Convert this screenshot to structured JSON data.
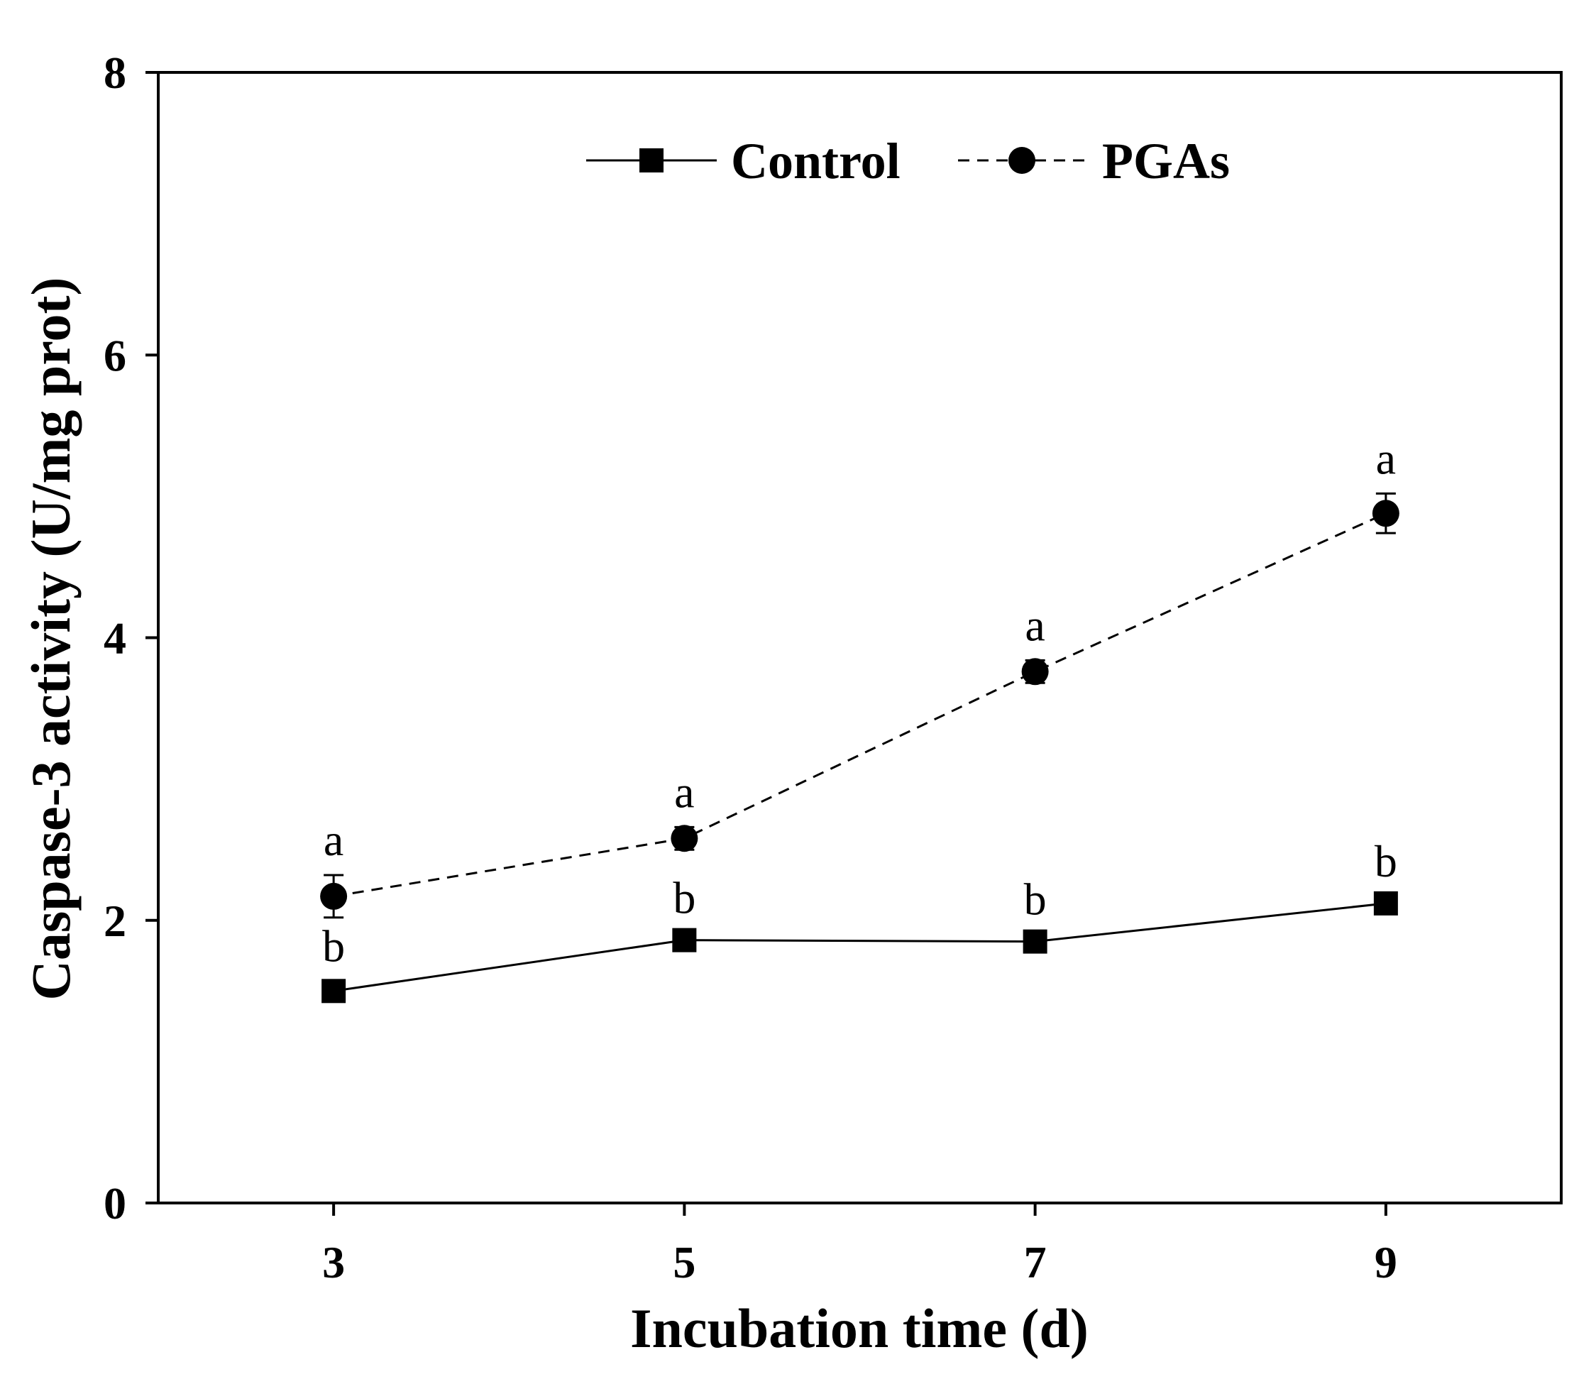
{
  "chart_data": {
    "type": "line",
    "title": "",
    "xlabel": "Incubation time (d)",
    "ylabel": "Caspase-3 activity (U/mg prot)",
    "x": [
      3,
      5,
      7,
      9
    ],
    "x_ticks": [
      "3",
      "5",
      "7",
      "9"
    ],
    "xlim": [
      2,
      10
    ],
    "ylim": [
      0,
      8
    ],
    "y_ticks": [
      "0",
      "2",
      "4",
      "6",
      "8"
    ],
    "legend_position": "top-right",
    "series": [
      {
        "name": "Control",
        "marker": "square",
        "line": "solid",
        "values": [
          1.5,
          1.86,
          1.85,
          2.12
        ],
        "errors": [
          0.07,
          0.05,
          0.05,
          0.05
        ],
        "labels": [
          "b",
          "b",
          "b",
          "b"
        ]
      },
      {
        "name": "PGAs",
        "marker": "circle",
        "line": "dashed",
        "values": [
          2.17,
          2.58,
          3.76,
          4.88
        ],
        "errors": [
          0.15,
          0.08,
          0.08,
          0.14
        ],
        "labels": [
          "a",
          "a",
          "a",
          "a"
        ]
      }
    ]
  }
}
